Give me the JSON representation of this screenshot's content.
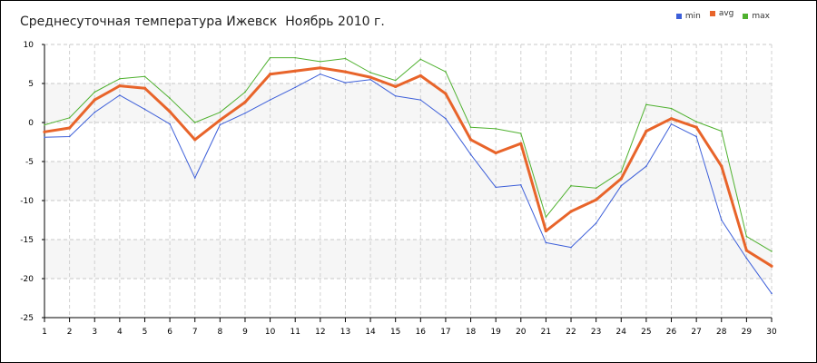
{
  "chart_data": {
    "type": "line",
    "title": "Среднесуточная температура Ижевск  Ноябрь 2010 г.",
    "xlabel": "",
    "ylabel": "",
    "x": [
      1,
      2,
      3,
      4,
      5,
      6,
      7,
      8,
      9,
      10,
      11,
      12,
      13,
      14,
      15,
      16,
      17,
      18,
      19,
      20,
      21,
      22,
      23,
      24,
      25,
      26,
      27,
      28,
      29,
      30
    ],
    "xlim": [
      1,
      30
    ],
    "ylim": [
      -25,
      10
    ],
    "y_ticks": [
      10,
      5,
      0,
      -5,
      -10,
      -15,
      -20,
      -25
    ],
    "grid": true,
    "legend_position": "top-right",
    "series": [
      {
        "name": "min",
        "color": "#3d5fd9",
        "values": [
          -1.9,
          -1.8,
          1.3,
          3.5,
          1.7,
          -0.2,
          -7.1,
          -0.3,
          1.2,
          2.9,
          4.5,
          6.2,
          5.1,
          5.5,
          3.4,
          2.9,
          0.5,
          -4.1,
          -8.3,
          -8.0,
          -15.4,
          -16.0,
          -12.9,
          -8.1,
          -5.6,
          -0.2,
          -1.8,
          -12.5,
          -17.4,
          -21.9
        ]
      },
      {
        "name": "avg",
        "color": "#e8642a",
        "values": [
          -1.2,
          -0.7,
          2.9,
          4.7,
          4.4,
          1.4,
          -2.2,
          0.3,
          2.6,
          6.2,
          6.6,
          7.0,
          6.5,
          5.8,
          4.6,
          6.0,
          3.7,
          -2.2,
          -3.9,
          -2.7,
          -13.9,
          -11.4,
          -9.9,
          -7.2,
          -1.1,
          0.5,
          -0.6,
          -5.6,
          -16.4,
          -18.4
        ]
      },
      {
        "name": "max",
        "color": "#4fb12f",
        "values": [
          -0.3,
          0.6,
          3.9,
          5.6,
          5.9,
          3.1,
          0.0,
          1.3,
          3.9,
          8.3,
          8.3,
          7.8,
          8.2,
          6.4,
          5.4,
          8.1,
          6.5,
          -0.6,
          -0.8,
          -1.4,
          -12.1,
          -8.1,
          -8.4,
          -6.3,
          2.3,
          1.8,
          0.1,
          -1.1,
          -14.6,
          -16.5
        ]
      }
    ]
  }
}
